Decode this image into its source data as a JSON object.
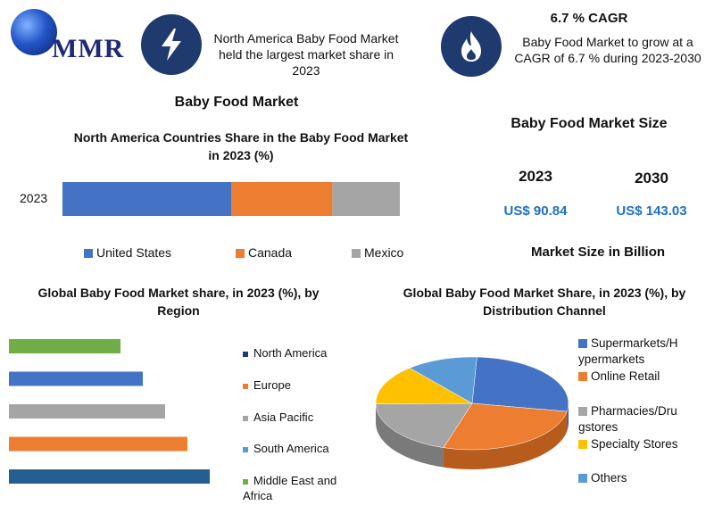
{
  "brand": {
    "name": "MMR"
  },
  "header": {
    "left_text": "North America Baby Food Market held the largest market share in 2023",
    "cagr_title": "6.7 % CAGR",
    "cagr_text": "Baby Food Market to grow at a CAGR of 6.7 % during 2023-2030"
  },
  "main_title": "Baby Food Market",
  "colors": {
    "navy": "#1f3a6e",
    "blue": "#4472c4",
    "orange": "#ed7d31",
    "gray": "#a5a5a5",
    "yellow": "#ffc000",
    "lightblue": "#5b9bd5",
    "green": "#70ad47",
    "darkblue": "#255e91"
  },
  "market_size": {
    "title": "Market Size",
    "title_full": "Baby Food Market Size",
    "years": [
      "2023",
      "2030"
    ],
    "values": [
      "US$ 90.84",
      "US$ 143.03"
    ],
    "footer": "Market Size in Billion"
  },
  "chart_data": [
    {
      "type": "bar",
      "orientation": "horizontal-stacked",
      "title": "North America Countries Share in the Baby Food Market in 2023 (%)",
      "categories": [
        "2023"
      ],
      "series": [
        {
          "name": "United States",
          "values": [
            50
          ]
        },
        {
          "name": "Canada",
          "values": [
            30
          ]
        },
        {
          "name": "Mexico",
          "values": [
            20
          ]
        }
      ],
      "legend": "bottom"
    },
    {
      "type": "bar",
      "orientation": "horizontal",
      "title": "Global Baby Food Market share, in 2023 (%), by Region",
      "categories": [
        "North America",
        "Europe",
        "Asia Pacific",
        "South America",
        "Middle East and Africa"
      ],
      "legend_labels": [
        "North America",
        "Europe",
        "Asia Pacific",
        "South America",
        "Middle East and Africa"
      ],
      "bar_order_top_to_bottom": [
        "Middle East and Africa",
        "South America",
        "Asia Pacific",
        "Europe",
        "North America"
      ],
      "values_top_to_bottom": [
        10,
        12,
        14,
        16,
        18
      ],
      "legend": "right"
    },
    {
      "type": "pie",
      "title": "Global Baby Food Market Share, in 2023 (%), by Distribution Channel",
      "categories": [
        "Supermarkets/Hypermarkets",
        "Online Retail",
        "Pharmacies/Drugstores",
        "Specialty Stores",
        "Others"
      ],
      "legend_labels": [
        "Supermarkets/H ypermarkets",
        "Online Retail",
        "Pharmacies/Dru gstores",
        "Specialty Stores",
        "Others"
      ],
      "values": [
        27,
        27,
        20,
        14,
        12
      ],
      "legend": "right"
    }
  ]
}
